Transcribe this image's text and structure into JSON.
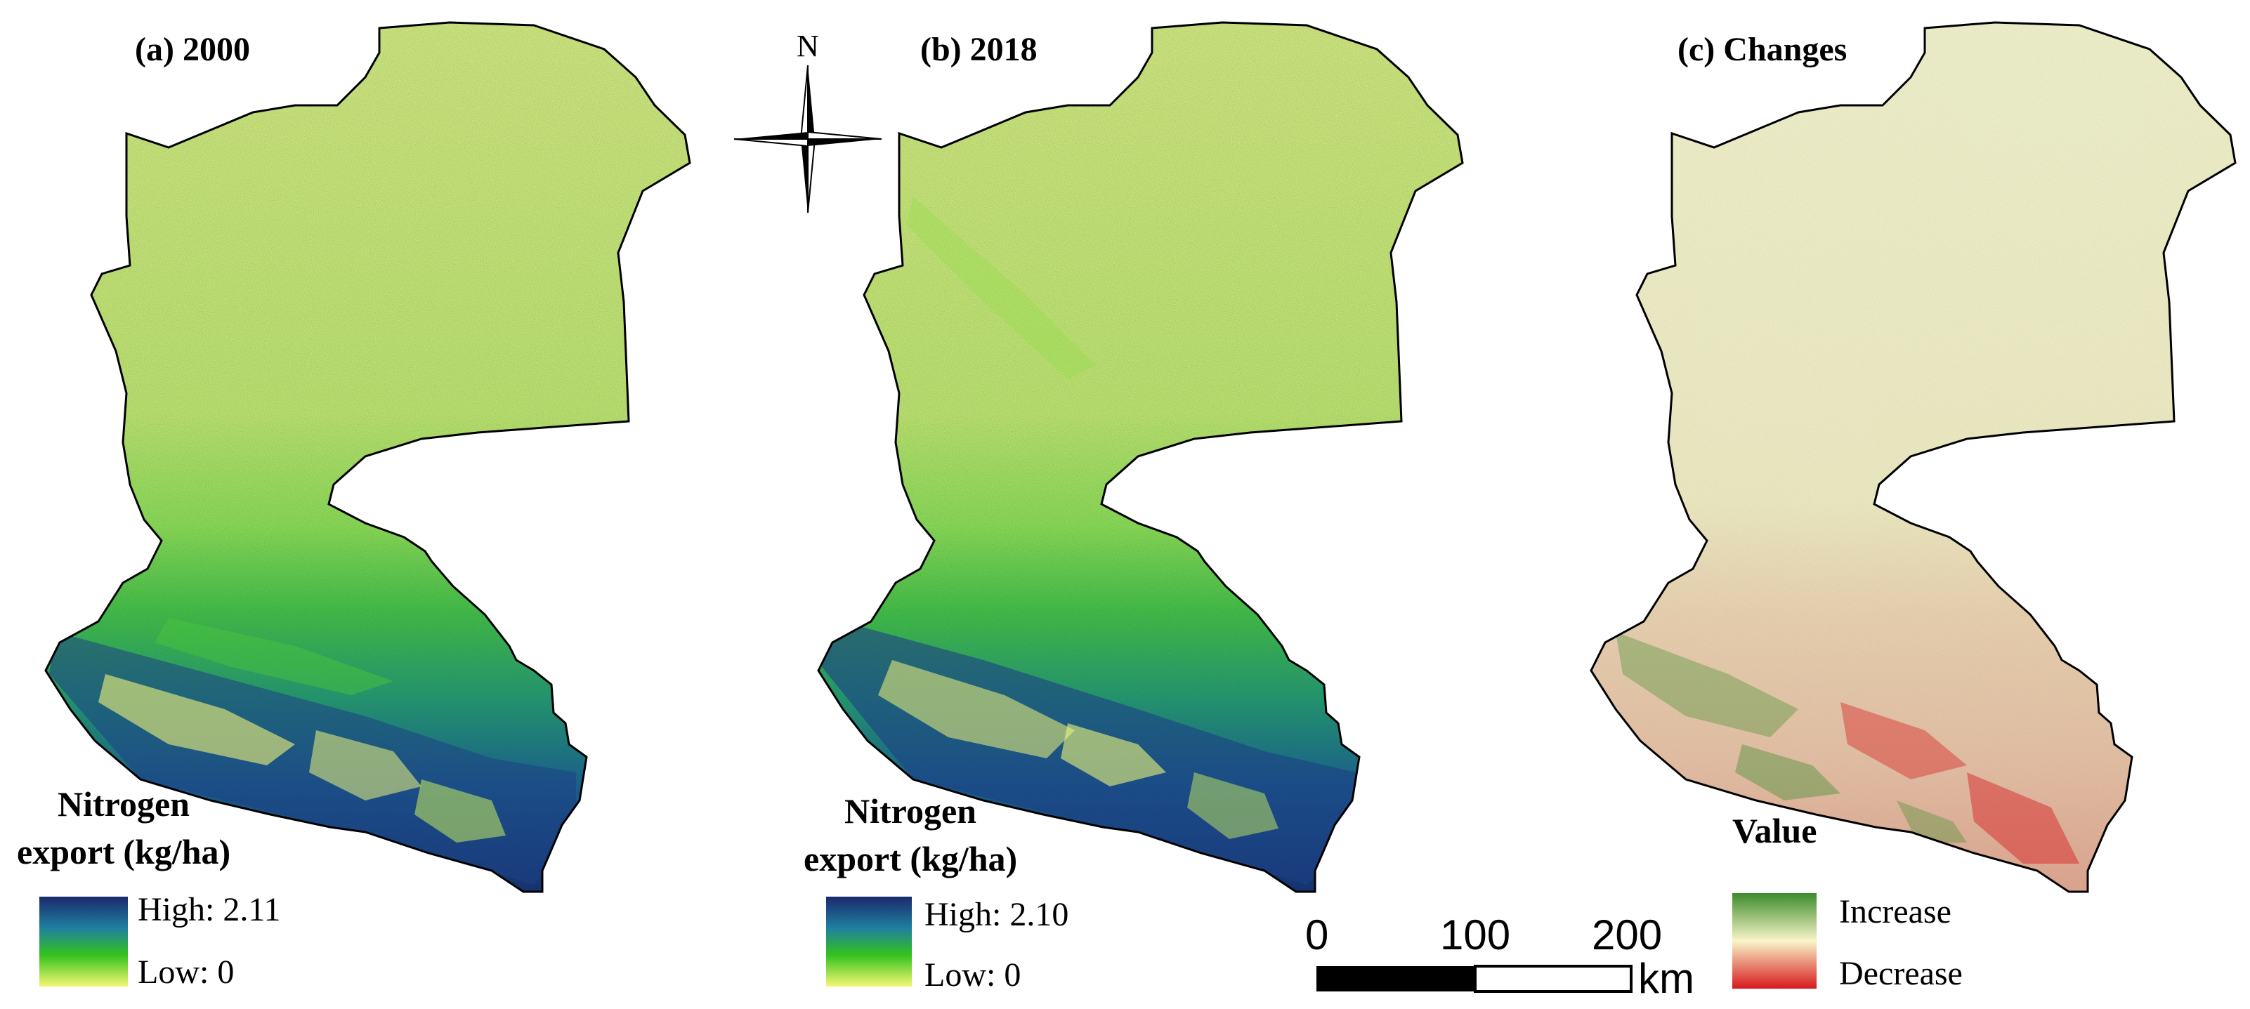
{
  "panels": [
    {
      "title": "(a) 2000",
      "kind": "nitrogen",
      "legend": {
        "title_line1": "Nitrogen",
        "title_line2": "export (kg/ha)",
        "high_label": "High: 2.11",
        "low_label": "Low: 0"
      }
    },
    {
      "title": "(b) 2018",
      "kind": "nitrogen",
      "legend": {
        "title_line1": "Nitrogen",
        "title_line2": "export (kg/ha)",
        "high_label": "High: 2.10",
        "low_label": "Low: 0"
      }
    },
    {
      "title": "(c) Changes",
      "kind": "changes",
      "legend": {
        "title": "Value",
        "increase_label": "Increase",
        "decrease_label": "Decrease"
      }
    }
  ],
  "north_arrow": {
    "label": "N"
  },
  "scale_bar": {
    "ticks": [
      "0",
      "100",
      "200"
    ],
    "unit": "km"
  },
  "colors": {
    "nitrogen_high": "#1a2a6c",
    "nitrogen_mid_blue": "#1f7fa0",
    "nitrogen_mid_green": "#34c21c",
    "nitrogen_low": "#f6f774",
    "change_increase": "#3c8c2c",
    "change_neutral": "#f9f5c8",
    "change_decrease": "#d7191c",
    "boundary": "#000000"
  }
}
